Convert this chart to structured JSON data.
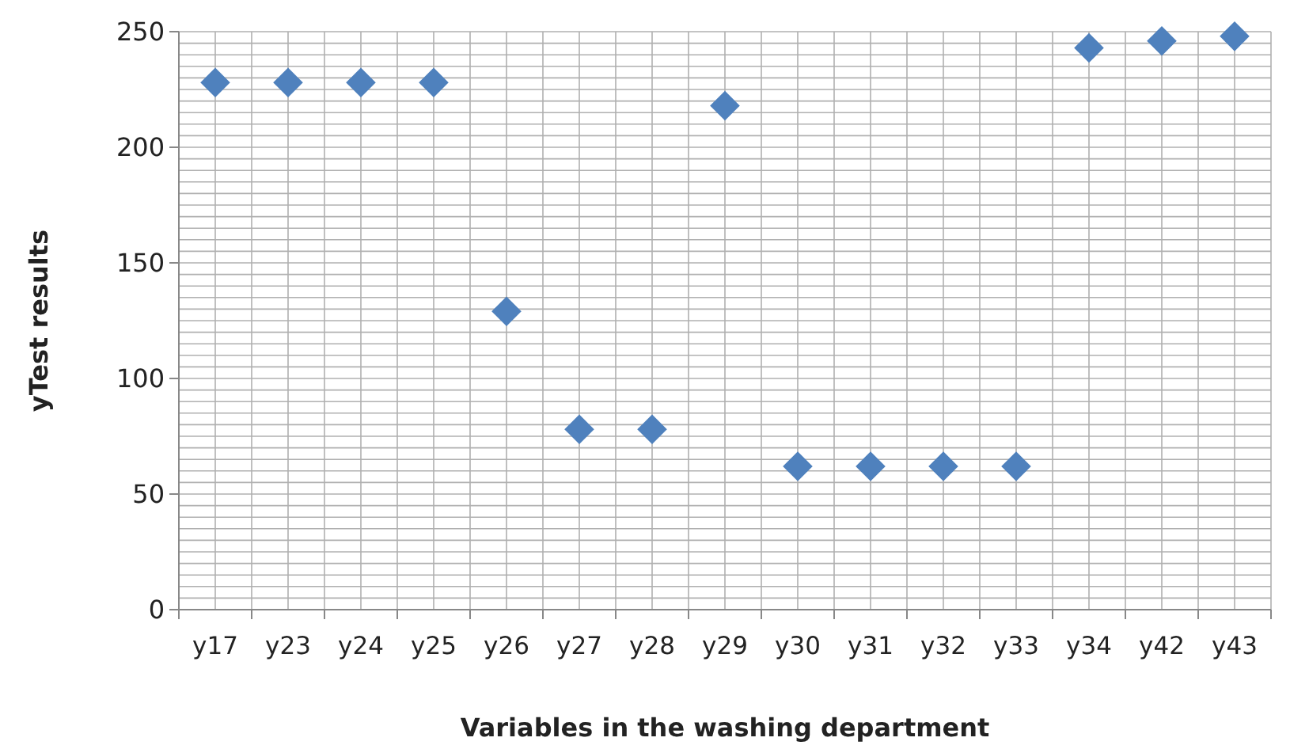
{
  "chart_data": {
    "type": "scatter",
    "xlabel": "Variables in the washing department",
    "ylabel": "yTest results",
    "categories": [
      "y17",
      "y23",
      "y24",
      "y25",
      "y26",
      "y27",
      "y28",
      "y29",
      "y30",
      "y31",
      "y32",
      "y33",
      "y34",
      "y42",
      "y43"
    ],
    "series": [
      {
        "color": "#4f81bd",
        "values": [
          228,
          228,
          228,
          228,
          129,
          78,
          78,
          218,
          62,
          62,
          62,
          62,
          243,
          246,
          248
        ]
      }
    ],
    "ylim": [
      0,
      250
    ],
    "yticks": [
      0,
      {
        "value": 5,
        "label": null
      },
      {
        "value": 10,
        "label": null
      },
      {
        "value": 15,
        "label": null
      },
      {
        "value": 20,
        "label": null
      },
      {
        "value": 25,
        "label": null
      },
      {
        "value": 30,
        "label": null
      },
      {
        "value": 35,
        "label": null
      },
      {
        "value": 40,
        "label": null
      },
      {
        "value": 45,
        "label": null
      },
      50,
      {
        "value": 55,
        "label": null
      },
      {
        "value": 60,
        "label": null
      },
      {
        "value": 65,
        "label": null
      },
      {
        "value": 70,
        "label": null
      },
      {
        "value": 75,
        "label": null
      },
      {
        "value": 80,
        "label": null
      },
      {
        "value": 85,
        "label": null
      },
      {
        "value": 90,
        "label": null
      },
      {
        "value": 95,
        "label": null
      },
      100,
      {
        "value": 105,
        "label": null
      },
      {
        "value": 110,
        "label": null
      },
      {
        "value": 115,
        "label": null
      },
      {
        "value": 120,
        "label": null
      },
      {
        "value": 125,
        "label": null
      },
      {
        "value": 130,
        "label": null
      },
      {
        "value": 135,
        "label": null
      },
      {
        "value": 140,
        "label": null
      },
      {
        "value": 145,
        "label": null
      },
      150,
      {
        "value": 155,
        "label": null
      },
      {
        "value": 160,
        "label": null
      },
      {
        "value": 165,
        "label": null
      },
      {
        "value": 170,
        "label": null
      },
      {
        "value": 175,
        "label": null
      },
      {
        "value": 180,
        "label": null
      },
      {
        "value": 185,
        "label": null
      },
      {
        "value": 190,
        "label": null
      },
      {
        "value": 195,
        "label": null
      },
      200,
      {
        "value": 205,
        "label": null
      },
      {
        "value": 210,
        "label": null
      },
      {
        "value": 215,
        "label": null
      },
      {
        "value": 220,
        "label": null
      },
      {
        "value": 225,
        "label": null
      },
      {
        "value": 230,
        "label": null
      },
      {
        "value": 235,
        "label": null
      },
      {
        "value": 240,
        "label": null
      },
      {
        "value": 245,
        "label": null
      },
      250
    ],
    "grid": true,
    "marker": "diamond"
  }
}
